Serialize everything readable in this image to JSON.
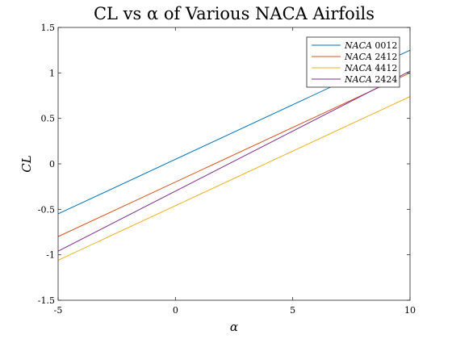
{
  "chart_data": {
    "type": "line",
    "title": "CL vs α of Various NACA Airfoils",
    "xlabel": "α",
    "ylabel": "CL",
    "xlim": [
      -5,
      10
    ],
    "ylim": [
      -1.5,
      1.5
    ],
    "x_ticks": [
      -5,
      0,
      5,
      10
    ],
    "x_tick_labels": [
      "-5",
      "0",
      "5",
      "10"
    ],
    "y_ticks": [
      -1.5,
      -1,
      -0.5,
      0,
      0.5,
      1,
      1.5
    ],
    "y_tick_labels": [
      "-1.5",
      "-1",
      "-0.5",
      "0",
      "0.5",
      "1",
      "1.5"
    ],
    "grid": false,
    "legend_position": "top-right",
    "series": [
      {
        "name": "NACA 0012",
        "legend_prefix": "NACA",
        "legend_code": "0012",
        "color": "#0072BD",
        "x": [
          -5,
          10
        ],
        "y": [
          -0.55,
          1.25
        ]
      },
      {
        "name": "NACA 2412",
        "legend_prefix": "NACA",
        "legend_code": "2412",
        "color": "#D95319",
        "x": [
          -5,
          10
        ],
        "y": [
          -0.8,
          1.0
        ]
      },
      {
        "name": "NACA 4412",
        "legend_prefix": "NACA",
        "legend_code": "4412",
        "color": "#EDB120",
        "x": [
          -5,
          10
        ],
        "y": [
          -1.06,
          0.74
        ]
      },
      {
        "name": "NACA 2424",
        "legend_prefix": "NACA",
        "legend_code": "2424",
        "color": "#7E2F8E",
        "x": [
          -5,
          10
        ],
        "y": [
          -0.96,
          1.02
        ]
      }
    ]
  }
}
